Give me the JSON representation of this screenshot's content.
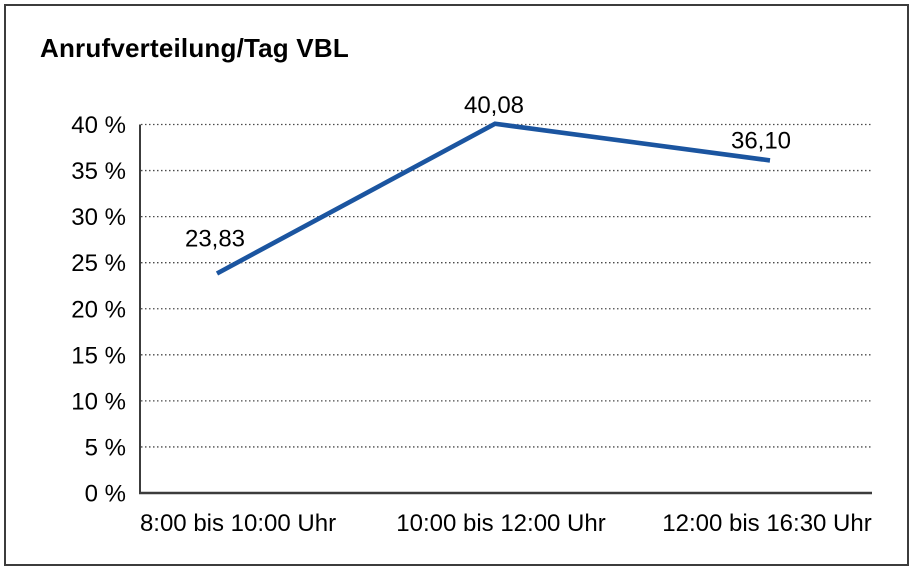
{
  "window": {
    "background": "#ffffff",
    "border_color": "#3c3c3c"
  },
  "chart_data": {
    "type": "line",
    "title": "Anrufverteilung/Tag VBL",
    "categories": [
      "8:00 bis 10:00 Uhr",
      "10:00 bis 12:00 Uhr",
      "12:00 bis 16:30 Uhr"
    ],
    "values": [
      23.83,
      40.08,
      36.1
    ],
    "data_labels": [
      "23,83",
      "40,08",
      "36,10"
    ],
    "ylim": [
      0,
      40
    ],
    "ytick_step": 5,
    "ytick_labels": [
      "0 %",
      "5 %",
      "10 %",
      "15 %",
      "20 %",
      "25 %",
      "30 %",
      "35 %",
      "40 %"
    ],
    "xlabel": "",
    "ylabel": "",
    "grid": "horizontal-dotted",
    "legend": "none",
    "line_color": "#1b55a0",
    "grid_color": "#4a4a4a",
    "axis_color": "#3c3c3c",
    "text_color": "#000000"
  }
}
